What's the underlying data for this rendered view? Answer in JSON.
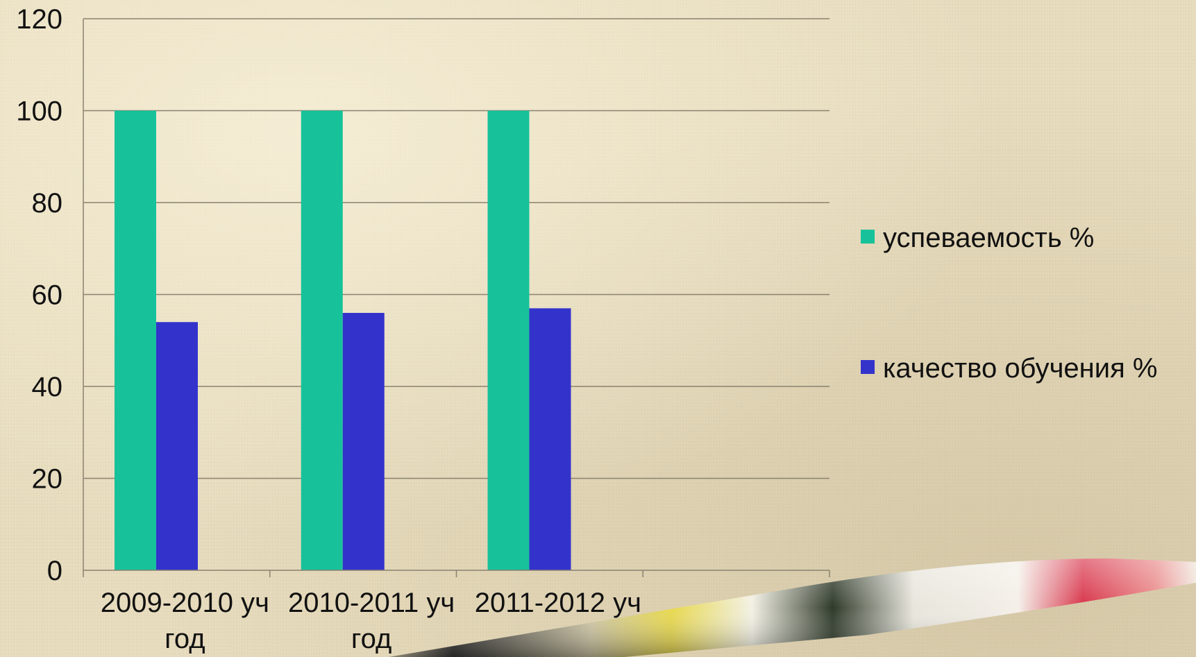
{
  "chart_data": {
    "type": "bar",
    "categories": [
      [
        "2009-2010",
        "уч",
        "год"
      ],
      [
        "2010-2011",
        "уч",
        "год"
      ],
      [
        "2011-2012",
        "уч",
        "год"
      ],
      [
        "",
        "",
        ""
      ]
    ],
    "series": [
      {
        "name": "успеваемость %",
        "values": [
          100,
          100,
          100,
          null
        ],
        "color": "#17c29a"
      },
      {
        "name": "качество обучения %",
        "values": [
          54,
          56,
          57,
          null
        ],
        "color": "#3333cc"
      }
    ],
    "ylim": [
      0,
      120
    ],
    "yticks": [
      0,
      20,
      40,
      60,
      80,
      100,
      120
    ],
    "grid": true,
    "legend_position": "right"
  }
}
